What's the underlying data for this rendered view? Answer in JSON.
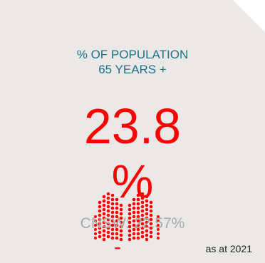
{
  "card": {
    "label": "% OF POPULATION 65 YEARS +",
    "value": "23.8",
    "unit": "%",
    "comparison": "CNSW: 22.57%",
    "as_at": "as at 2021",
    "dash": "-",
    "colors": {
      "background": "#ebe9e8",
      "label": "#1f6f87",
      "value": "#ff0000",
      "comparison": "#a9a9a9"
    },
    "icon": "elderly-people-dots-icon"
  }
}
